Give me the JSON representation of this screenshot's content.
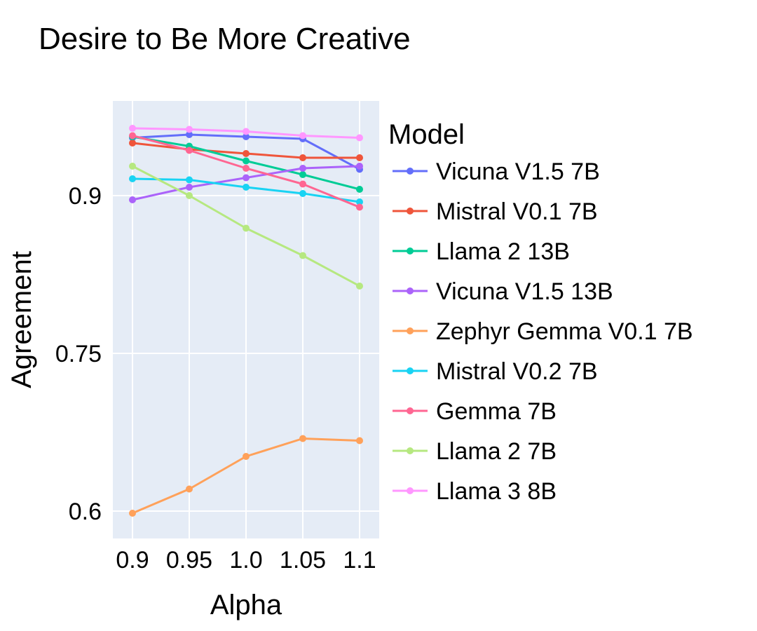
{
  "chart_data": {
    "type": "line",
    "title": "Desire to Be More Creative",
    "xlabel": "Alpha",
    "ylabel": "Agreement",
    "x": [
      0.9,
      0.95,
      1.0,
      1.05,
      1.1
    ],
    "x_tick_labels": [
      "0.9",
      "0.95",
      "1.0",
      "1.05",
      "1.1"
    ],
    "y_ticks": [
      0.6,
      0.75,
      0.9
    ],
    "y_tick_labels": [
      "0.6",
      "0.75",
      "0.9"
    ],
    "ylim": [
      0.574,
      0.99
    ],
    "grid": true,
    "legend": {
      "title": "Model",
      "position": "right"
    },
    "series": [
      {
        "name": "Vicuna V1.5 7B",
        "color": "#636efa",
        "values": [
          0.955,
          0.958,
          0.956,
          0.954,
          0.925
        ]
      },
      {
        "name": "Mistral V0.1 7B",
        "color": "#ef553b",
        "values": [
          0.95,
          0.944,
          0.94,
          0.936,
          0.936
        ]
      },
      {
        "name": "Llama 2 13B",
        "color": "#00cc96",
        "values": [
          0.956,
          0.947,
          0.933,
          0.92,
          0.906
        ]
      },
      {
        "name": "Vicuna V1.5 13B",
        "color": "#ab63fa",
        "values": [
          0.896,
          0.908,
          0.917,
          0.926,
          0.928
        ]
      },
      {
        "name": "Zephyr Gemma V0.1 7B",
        "color": "#ffa15a",
        "values": [
          0.598,
          0.621,
          0.652,
          0.669,
          0.667
        ]
      },
      {
        "name": "Mistral V0.2 7B",
        "color": "#19d3f3",
        "values": [
          0.916,
          0.915,
          0.908,
          0.902,
          0.894
        ]
      },
      {
        "name": "Gemma 7B",
        "color": "#ff6692",
        "values": [
          0.957,
          0.943,
          0.926,
          0.911,
          0.889
        ]
      },
      {
        "name": "Llama 2 7B",
        "color": "#b6e880",
        "values": [
          0.928,
          0.9,
          0.869,
          0.843,
          0.814
        ]
      },
      {
        "name": "Llama 3 8B",
        "color": "#ff97ff",
        "values": [
          0.964,
          0.963,
          0.961,
          0.957,
          0.955
        ]
      }
    ]
  }
}
